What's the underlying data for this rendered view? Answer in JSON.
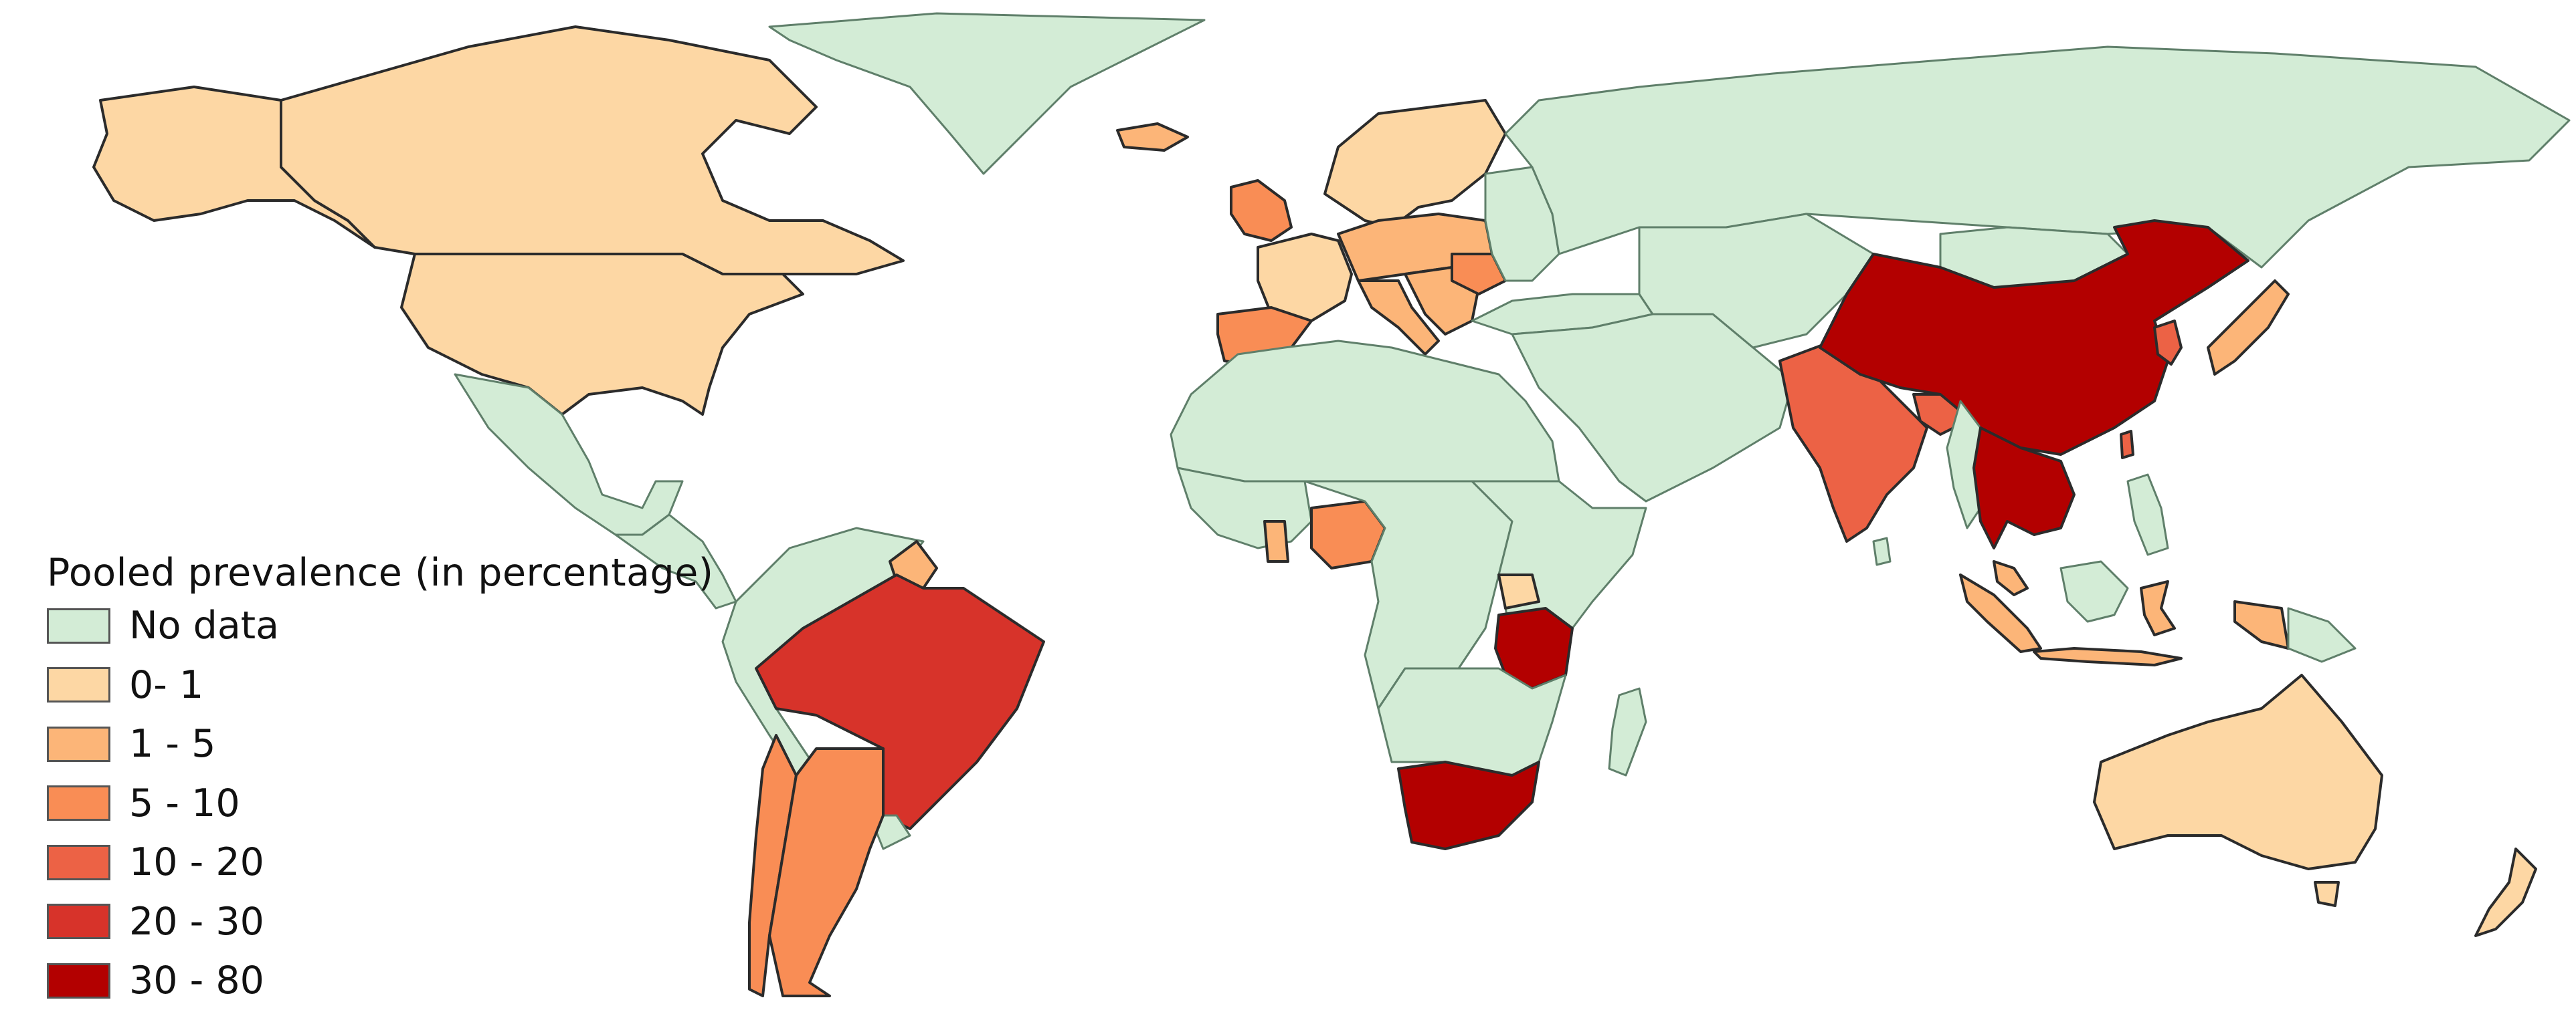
{
  "legend": {
    "title": "Pooled prevalence (in percentage)",
    "items": [
      {
        "label": "No data",
        "color": "#d3ecd6"
      },
      {
        "label": "0- 1",
        "color": "#fdd7a4"
      },
      {
        "label": "1 - 5",
        "color": "#fcb578"
      },
      {
        "label": "5 - 10",
        "color": "#f98d55"
      },
      {
        "label": "10 - 20",
        "color": "#ec6245"
      },
      {
        "label": "20 - 30",
        "color": "#d7332a"
      },
      {
        "label": "30 - 80",
        "color": "#b30000"
      }
    ]
  },
  "regions": [
    {
      "name": "canada",
      "class": 1
    },
    {
      "name": "usa",
      "class": 1
    },
    {
      "name": "alaska",
      "class": 1
    },
    {
      "name": "greenland",
      "class": 0
    },
    {
      "name": "mexico",
      "class": 0
    },
    {
      "name": "central-america",
      "class": 0
    },
    {
      "name": "brazil",
      "class": 5
    },
    {
      "name": "argentina",
      "class": 3
    },
    {
      "name": "chile",
      "class": 3
    },
    {
      "name": "andean-south-america",
      "class": 0
    },
    {
      "name": "uruguay",
      "class": 0
    },
    {
      "name": "guyana",
      "class": 2
    },
    {
      "name": "iceland",
      "class": 2
    },
    {
      "name": "scandinavia",
      "class": 1
    },
    {
      "name": "british-isles",
      "class": 3
    },
    {
      "name": "western-europe",
      "class": 1
    },
    {
      "name": "central-europe",
      "class": 2
    },
    {
      "name": "iberia",
      "class": 3
    },
    {
      "name": "italy",
      "class": 2
    },
    {
      "name": "balkans",
      "class": 2
    },
    {
      "name": "romania",
      "class": 3
    },
    {
      "name": "eastern-europe",
      "class": 0
    },
    {
      "name": "russia",
      "class": 0
    },
    {
      "name": "turkey-caucasus",
      "class": 0
    },
    {
      "name": "north-africa",
      "class": 0
    },
    {
      "name": "west-africa",
      "class": 0
    },
    {
      "name": "ghana",
      "class": 2
    },
    {
      "name": "nigeria",
      "class": 3
    },
    {
      "name": "central-africa",
      "class": 0
    },
    {
      "name": "east-africa",
      "class": 0
    },
    {
      "name": "uganda",
      "class": 1
    },
    {
      "name": "tanzania",
      "class": 6
    },
    {
      "name": "southern-africa",
      "class": 0
    },
    {
      "name": "south-africa",
      "class": 6
    },
    {
      "name": "madagascar",
      "class": 0
    },
    {
      "name": "middle-east",
      "class": 0
    },
    {
      "name": "central-asia",
      "class": 0
    },
    {
      "name": "india",
      "class": 4
    },
    {
      "name": "nepal-bangladesh",
      "class": 4
    },
    {
      "name": "china",
      "class": 6
    },
    {
      "name": "mongolia",
      "class": 0
    },
    {
      "name": "korea",
      "class": 4
    },
    {
      "name": "japan",
      "class": 2
    },
    {
      "name": "myanmar",
      "class": 0
    },
    {
      "name": "thailand-indochina",
      "class": 6
    },
    {
      "name": "taiwan",
      "class": 4
    },
    {
      "name": "philippines",
      "class": 0
    },
    {
      "name": "malaysia",
      "class": 2
    },
    {
      "name": "sumatra",
      "class": 2
    },
    {
      "name": "java",
      "class": 2
    },
    {
      "name": "borneo",
      "class": 0
    },
    {
      "name": "sulawesi",
      "class": 2
    },
    {
      "name": "papua",
      "class": 2
    },
    {
      "name": "png",
      "class": 0
    },
    {
      "name": "australia",
      "class": 1
    },
    {
      "name": "tasmania",
      "class": 1
    },
    {
      "name": "new-zealand",
      "class": 1
    },
    {
      "name": "sri-lanka",
      "class": 0
    }
  ]
}
